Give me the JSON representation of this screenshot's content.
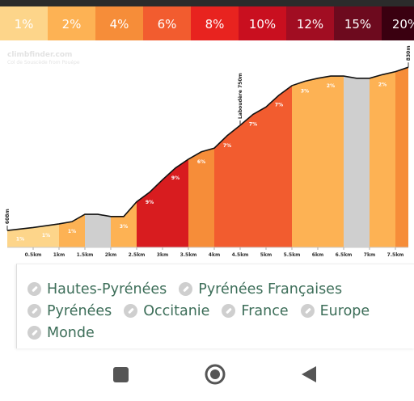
{
  "legend": {
    "items": [
      {
        "label": "1%",
        "color": "#fdd58a"
      },
      {
        "label": "2%",
        "color": "#fdb254"
      },
      {
        "label": "4%",
        "color": "#f68d39"
      },
      {
        "label": "6%",
        "color": "#f25c2f"
      },
      {
        "label": "8%",
        "color": "#e8231f"
      },
      {
        "label": "10%",
        "color": "#c90f1f"
      },
      {
        "label": "12%",
        "color": "#a10d22"
      },
      {
        "label": "15%",
        "color": "#6d0a1e"
      },
      {
        "label": "20%",
        "color": "#3a0010"
      }
    ]
  },
  "chart_data": {
    "type": "profile",
    "watermark": "climbfinder.com",
    "subtitle": "Col de Souscède from Pouépe",
    "x": [
      0,
      0.5,
      1,
      1.25,
      1.5,
      1.75,
      2,
      2.25,
      2.5,
      2.75,
      3,
      3.25,
      3.5,
      3.75,
      4,
      4.25,
      4.5,
      4.75,
      5,
      5.25,
      5.5,
      5.75,
      6,
      6.25,
      6.5,
      6.75,
      7,
      7.25,
      7.5,
      7.75
    ],
    "elevation": [
      608,
      612,
      617,
      620,
      630,
      630,
      627,
      627,
      647,
      660,
      677,
      693,
      705,
      715,
      720,
      737,
      751,
      766,
      776,
      792,
      805,
      811,
      815,
      818,
      818,
      815,
      815,
      820,
      824,
      830
    ],
    "xlim": [
      0,
      7.75
    ],
    "ylim": [
      585,
      850
    ],
    "xticks": [
      {
        "value": 0.5,
        "label": "0.5km"
      },
      {
        "value": 1,
        "label": "1km"
      },
      {
        "value": 1.5,
        "label": "1.5km"
      },
      {
        "value": 2,
        "label": "2km"
      },
      {
        "value": 2.5,
        "label": "2.5km"
      },
      {
        "value": 3,
        "label": "3km"
      },
      {
        "value": 3.5,
        "label": "3.5km"
      },
      {
        "value": 4,
        "label": "4km"
      },
      {
        "value": 4.5,
        "label": "4.5km"
      },
      {
        "value": 5,
        "label": "5km"
      },
      {
        "value": 5.5,
        "label": "5.5km"
      },
      {
        "value": 6,
        "label": "6km"
      },
      {
        "value": 6.5,
        "label": "6.5km"
      },
      {
        "value": 7,
        "label": "7km"
      },
      {
        "value": 7.5,
        "label": "7.5km"
      }
    ],
    "segments": [
      {
        "start": 0,
        "end": 0.5,
        "label": "1%",
        "color": "#fdd58a"
      },
      {
        "start": 0.5,
        "end": 1,
        "label": "1%",
        "color": "#fdd58a"
      },
      {
        "start": 1,
        "end": 1.5,
        "label": "1%",
        "color": "#fdb254"
      },
      {
        "start": 1.5,
        "end": 2,
        "color": "#cfcfcf"
      },
      {
        "start": 2,
        "end": 2.5,
        "label": "3%",
        "color": "#fdb254"
      },
      {
        "start": 2.5,
        "end": 3,
        "label": "9%",
        "color": "#d81c1f"
      },
      {
        "start": 3,
        "end": 3.5,
        "label": "9%",
        "color": "#d81c1f"
      },
      {
        "start": 3.5,
        "end": 4,
        "label": "6%",
        "color": "#f68d39"
      },
      {
        "start": 4,
        "end": 4.5,
        "label": "7%",
        "color": "#f25c2f"
      },
      {
        "start": 4.5,
        "end": 5,
        "label": "7%",
        "color": "#f25c2f"
      },
      {
        "start": 5,
        "end": 5.5,
        "label": "7%",
        "color": "#f25c2f"
      },
      {
        "start": 5.5,
        "end": 6,
        "label": "3%",
        "color": "#fdb254"
      },
      {
        "start": 6,
        "end": 6.5,
        "label": "2%",
        "color": "#fdb254"
      },
      {
        "start": 6.5,
        "end": 7,
        "color": "#cfcfcf"
      },
      {
        "start": 7,
        "end": 7.5,
        "label": "2%",
        "color": "#fdb254"
      },
      {
        "start": 7.5,
        "end": 7.75,
        "color": "#f68d39"
      }
    ],
    "annotations": [
      {
        "x": 0,
        "y": 608,
        "label": "608m"
      },
      {
        "x": 4.5,
        "y": 751,
        "label": "Laboudère 750m"
      },
      {
        "x": 7.75,
        "y": 830,
        "label": "830m"
      }
    ]
  },
  "tags": [
    "Hautes-Pyrénées",
    "Pyrénées Françaises",
    "Pyrénées",
    "Occitanie",
    "France",
    "Europe",
    "Monde"
  ]
}
